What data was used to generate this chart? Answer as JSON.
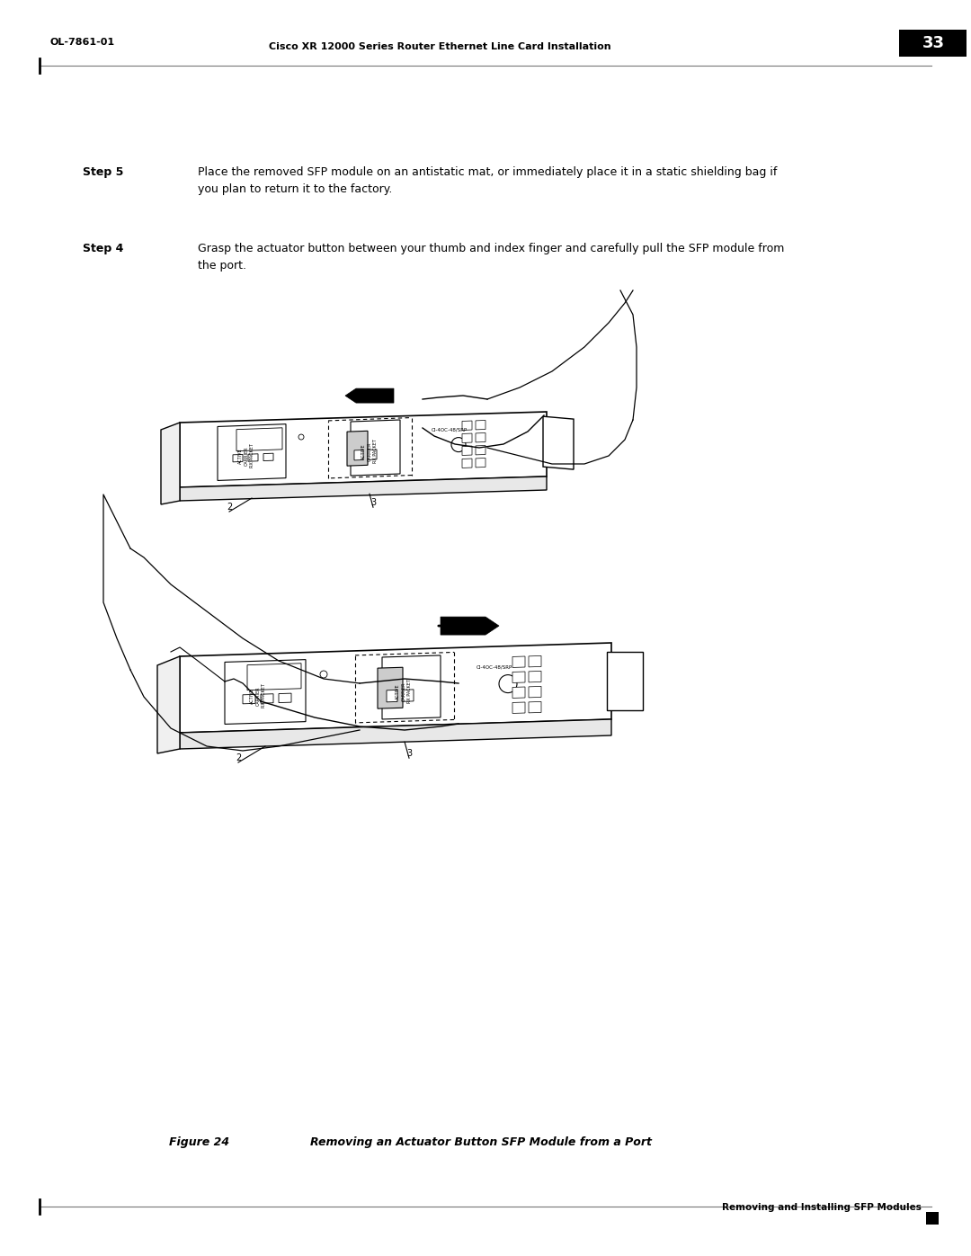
{
  "page_width": 10.8,
  "page_height": 13.97,
  "bg_color": "#ffffff",
  "header_text": "Removing and Installing SFP Modules",
  "figure_label": "Figure 24",
  "figure_title": "Removing an Actuator Button SFP Module from a Port",
  "step4_label": "Step 4",
  "step4_text": "Grasp the actuator button between your thumb and index finger and carefully pull the SFP module from\nthe port.",
  "step5_label": "Step 5",
  "step5_text": "Place the removed SFP module on an antistatic mat, or immediately place it in a static shielding bag if\nyou plan to return it to the factory.",
  "footer_left": "OL-7861-01",
  "footer_center": "Cisco XR 12000 Series Router Ethernet Line Card Installation",
  "footer_page": "33"
}
